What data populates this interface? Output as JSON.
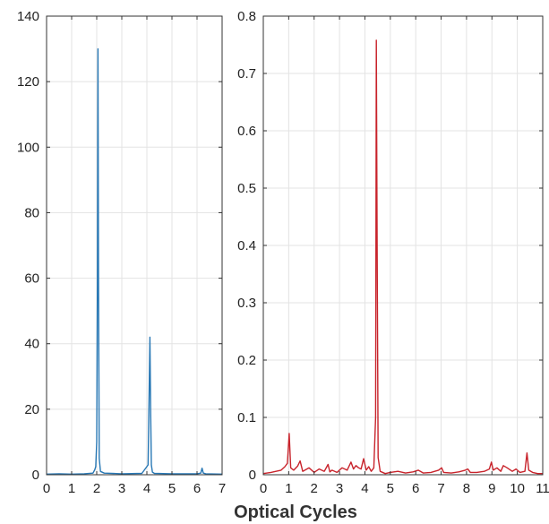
{
  "xlabel": "Optical Cycles",
  "colors": {
    "left_series": "#2878b5",
    "right_series": "#c8232b",
    "grid": "#e3e3e3",
    "axis": "#333333"
  },
  "chart_data": [
    {
      "type": "line",
      "xlim": [
        0,
        7
      ],
      "ylim": [
        0,
        140
      ],
      "xticks": [
        0,
        1,
        2,
        3,
        4,
        5,
        6,
        7
      ],
      "yticks": [
        0,
        20,
        40,
        60,
        80,
        100,
        120,
        140
      ],
      "grid": true,
      "series": [
        {
          "color": "#2878b5",
          "x": [
            0,
            0.5,
            1.0,
            1.5,
            1.85,
            1.92,
            1.96,
            2.0,
            2.03,
            2.05,
            2.07,
            2.1,
            2.15,
            2.3,
            3.0,
            3.8,
            4.05,
            4.12,
            4.15,
            4.18,
            4.22,
            4.3,
            5.0,
            6.0,
            6.15,
            6.2,
            6.25,
            6.35,
            7.0
          ],
          "y": [
            0.2,
            0.3,
            0.2,
            0.3,
            0.5,
            1.5,
            2.5,
            10,
            60,
            130,
            60,
            5,
            1,
            0.5,
            0.3,
            0.4,
            3,
            42,
            20,
            3,
            0.8,
            0.4,
            0.3,
            0.3,
            0.5,
            2,
            0.5,
            0.3,
            0.2
          ]
        }
      ]
    },
    {
      "type": "line",
      "xlim": [
        0,
        11
      ],
      "ylim": [
        0,
        0.8
      ],
      "xticks": [
        0,
        1,
        2,
        3,
        4,
        5,
        6,
        7,
        8,
        9,
        10,
        11
      ],
      "yticks": [
        0,
        0.1,
        0.2,
        0.3,
        0.4,
        0.5,
        0.6,
        0.7,
        0.8
      ],
      "grid": true,
      "series": [
        {
          "color": "#c8232b",
          "x": [
            0,
            0.3,
            0.5,
            0.7,
            0.85,
            0.95,
            1.02,
            1.08,
            1.2,
            1.35,
            1.45,
            1.55,
            1.8,
            2.0,
            2.2,
            2.4,
            2.55,
            2.62,
            2.7,
            2.9,
            3.1,
            3.3,
            3.45,
            3.55,
            3.65,
            3.75,
            3.85,
            3.95,
            4.05,
            4.15,
            4.25,
            4.35,
            4.42,
            4.45,
            4.48,
            4.52,
            4.6,
            4.8,
            5.0,
            5.3,
            5.6,
            5.9,
            6.1,
            6.3,
            6.6,
            6.9,
            7.02,
            7.1,
            7.4,
            7.7,
            7.95,
            8.05,
            8.15,
            8.4,
            8.7,
            8.9,
            8.98,
            9.05,
            9.2,
            9.35,
            9.45,
            9.6,
            9.8,
            9.95,
            10.1,
            10.3,
            10.38,
            10.45,
            10.6,
            10.8,
            11.0
          ],
          "y": [
            0.002,
            0.004,
            0.006,
            0.008,
            0.014,
            0.02,
            0.072,
            0.012,
            0.008,
            0.015,
            0.024,
            0.006,
            0.012,
            0.004,
            0.01,
            0.006,
            0.018,
            0.005,
            0.008,
            0.004,
            0.012,
            0.008,
            0.022,
            0.01,
            0.016,
            0.012,
            0.01,
            0.028,
            0.008,
            0.014,
            0.006,
            0.012,
            0.1,
            0.758,
            0.4,
            0.03,
            0.006,
            0.002,
            0.004,
            0.006,
            0.003,
            0.005,
            0.008,
            0.003,
            0.004,
            0.008,
            0.012,
            0.004,
            0.003,
            0.005,
            0.008,
            0.01,
            0.004,
            0.004,
            0.006,
            0.01,
            0.022,
            0.008,
            0.012,
            0.006,
            0.016,
            0.012,
            0.006,
            0.01,
            0.004,
            0.006,
            0.038,
            0.008,
            0.004,
            0.002,
            0.002
          ]
        }
      ]
    }
  ]
}
